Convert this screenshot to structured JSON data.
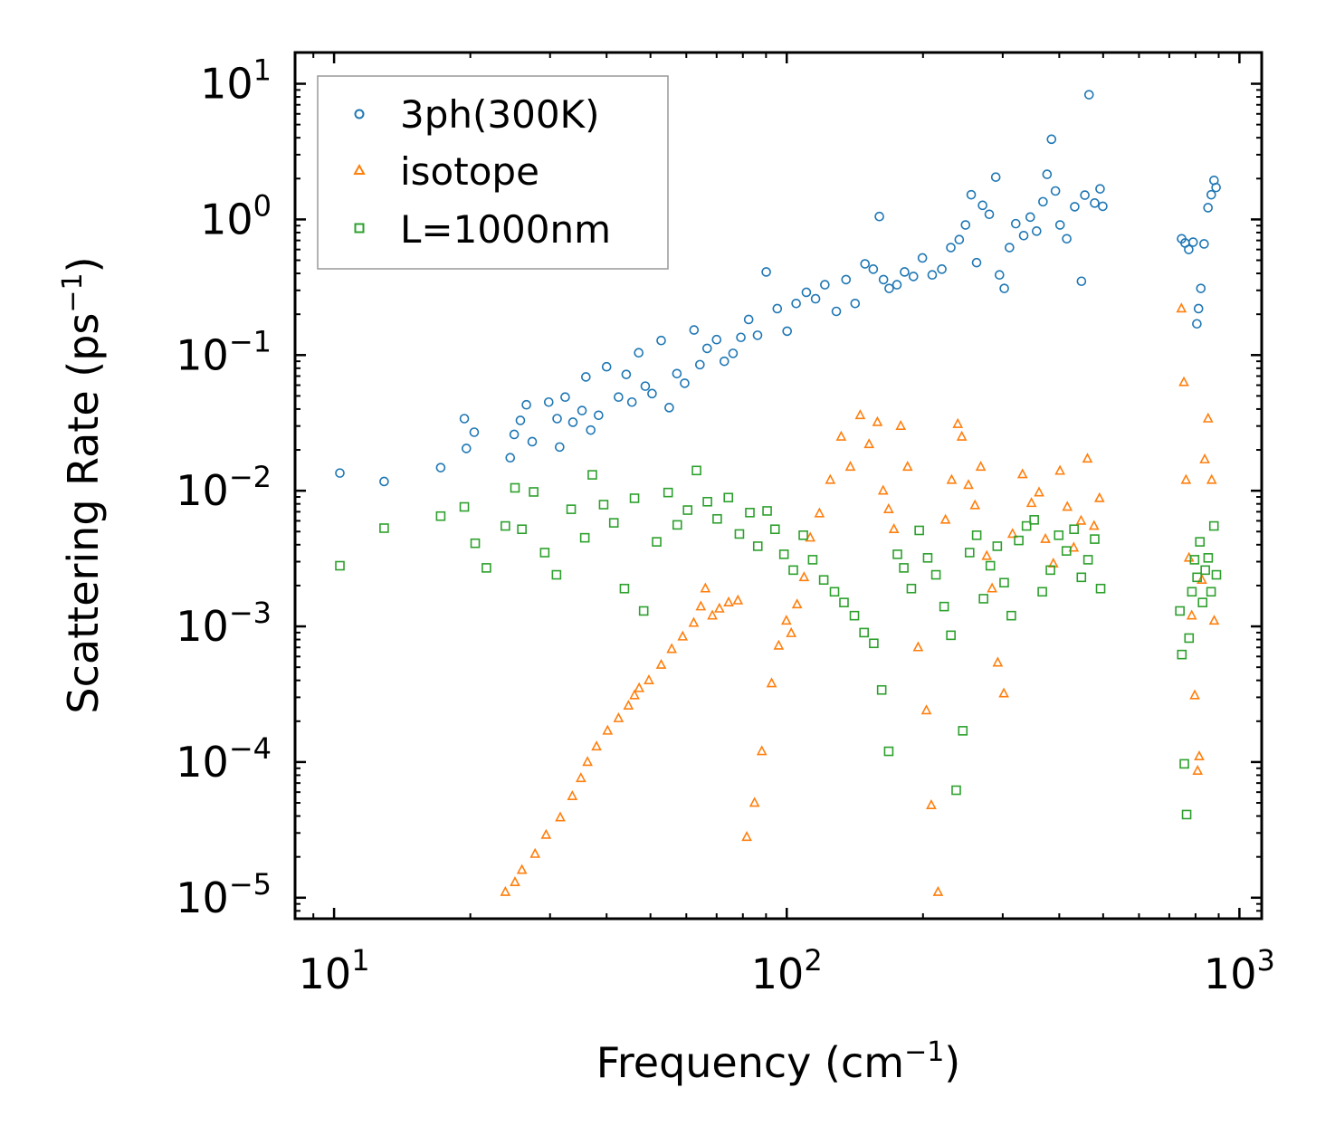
{
  "chart_data": {
    "type": "scatter",
    "title": "",
    "xlabel": "Frequency (cm",
    "xlabel_sup": "−1",
    "xlabel_tail": ")",
    "ylabel": "Scattering Rate (ps",
    "ylabel_sup": "−1",
    "ylabel_tail": ")",
    "xscale": "log",
    "yscale": "log",
    "xlim": [
      8.2,
      1120
    ],
    "ylim": [
      7e-06,
      17
    ],
    "x_ticks": [
      {
        "base": "10",
        "exp": "1",
        "value": 10
      },
      {
        "base": "10",
        "exp": "2",
        "value": 100
      },
      {
        "base": "10",
        "exp": "3",
        "value": 1000
      }
    ],
    "y_ticks": [
      {
        "base": "10",
        "exp": "1",
        "value": 10
      },
      {
        "base": "10",
        "exp": "0",
        "value": 1
      },
      {
        "base": "10",
        "exp": "−1",
        "value": 0.1
      },
      {
        "base": "10",
        "exp": "−2",
        "value": 0.01
      },
      {
        "base": "10",
        "exp": "−3",
        "value": 0.001
      },
      {
        "base": "10",
        "exp": "−4",
        "value": 0.0001
      },
      {
        "base": "10",
        "exp": "−5",
        "value": 1e-05
      }
    ],
    "legend_position": "top-left",
    "series": [
      {
        "name": "3ph(300K)",
        "marker": "circle",
        "color": "#1f77b4",
        "x": [
          10.3,
          12.9,
          17.2,
          19.4,
          19.6,
          20.4,
          24.5,
          25.0,
          25.8,
          26.6,
          27.4,
          29.8,
          31.1,
          31.5,
          32.4,
          33.7,
          35.3,
          36.0,
          36.9,
          38.4,
          40.0,
          42.5,
          44.2,
          45.5,
          47.1,
          48.7,
          50.4,
          52.8,
          55.0,
          57.2,
          59.5,
          62.4,
          64.3,
          66.7,
          70.0,
          72.8,
          76.1,
          79.2,
          82.4,
          86.2,
          90.1,
          95.3,
          100.2,
          104.9,
          110.5,
          115.8,
          121.4,
          128.7,
          135.2,
          141.6,
          148.9,
          155.3,
          160.2,
          163.6,
          168.4,
          175.2,
          182.1,
          190.5,
          199.4,
          209.6,
          220.1,
          230.4,
          240.5,
          248.3,
          255.6,
          262.7,
          270.8,
          280.2,
          289.6,
          295.1,
          302.4,
          310.5,
          320.6,
          333.8,
          345.1,
          356.4,
          368.2,
          375.9,
          384.5,
          392.3,
          401.6,
          415.5,
          432.7,
          447.8,
          455.6,
          465.4,
          478.9,
          492.3,
          499.1,
          745.4,
          758.6,
          772.9,
          790.2,
          805.5,
          812.3,
          821.9,
          835.6,
          852.4,
          866.7,
          878.9,
          888.2
        ],
        "y": [
          0.0135,
          0.0117,
          0.0148,
          0.034,
          0.0205,
          0.027,
          0.0175,
          0.026,
          0.033,
          0.043,
          0.023,
          0.045,
          0.034,
          0.021,
          0.049,
          0.032,
          0.039,
          0.069,
          0.028,
          0.036,
          0.082,
          0.049,
          0.072,
          0.045,
          0.104,
          0.059,
          0.052,
          0.128,
          0.041,
          0.073,
          0.062,
          0.153,
          0.085,
          0.112,
          0.13,
          0.09,
          0.103,
          0.135,
          0.183,
          0.14,
          0.41,
          0.22,
          0.15,
          0.24,
          0.29,
          0.26,
          0.33,
          0.21,
          0.36,
          0.24,
          0.47,
          0.43,
          1.05,
          0.36,
          0.31,
          0.33,
          0.41,
          0.38,
          0.52,
          0.39,
          0.43,
          0.62,
          0.71,
          0.91,
          1.52,
          0.48,
          1.27,
          1.09,
          2.05,
          0.39,
          0.31,
          0.62,
          0.93,
          0.76,
          1.04,
          0.82,
          1.35,
          2.15,
          3.9,
          1.62,
          0.91,
          0.72,
          1.24,
          0.35,
          1.51,
          8.3,
          1.32,
          1.68,
          1.25,
          0.72,
          0.67,
          0.6,
          0.68,
          0.17,
          0.22,
          0.31,
          0.66,
          1.22,
          1.52,
          1.94,
          1.72
        ]
      },
      {
        "name": "isotope",
        "marker": "triangle",
        "color": "#ff7f0e",
        "x": [
          23.9,
          25.1,
          26.0,
          27.8,
          29.4,
          31.6,
          33.6,
          35.1,
          36.3,
          38.0,
          40.2,
          42.5,
          44.7,
          46.1,
          47.2,
          49.6,
          52.8,
          55.7,
          58.9,
          62.3,
          64.6,
          66.1,
          68.5,
          71.0,
          74.4,
          78.0,
          81.6,
          84.9,
          88.1,
          92.6,
          96.0,
          99.8,
          102.3,
          105.4,
          109.2,
          112.7,
          118.1,
          124.8,
          131.9,
          138.2,
          145.3,
          152.0,
          158.6,
          163.3,
          167.9,
          172.5,
          178.6,
          184.9,
          195.1,
          203.5,
          208.6,
          215.9,
          224.2,
          231.4,
          238.7,
          243.6,
          252.0,
          260.5,
          268.3,
          276.6,
          284.2,
          292.5,
          301.7,
          315.4,
          331.8,
          347.2,
          360.9,
          372.8,
          388.1,
          401.4,
          416.7,
          430.5,
          446.9,
          461.6,
          477.4,
          490.8,
          744.5,
          753.9,
          762.1,
          773.8,
          784.6,
          796.8,
          808.5,
          815.1,
          826.2,
          838.3,
          852.7,
          868.4,
          879.5
        ],
        "y": [
          1.1e-05,
          1.3e-05,
          1.6e-05,
          2.1e-05,
          2.9e-05,
          3.9e-05,
          5.6e-05,
          7.6e-05,
          0.0001,
          0.00013,
          0.00017,
          0.00021,
          0.00026,
          0.00031,
          0.00035,
          0.0004,
          0.00052,
          0.00068,
          0.00084,
          0.00106,
          0.0014,
          0.0019,
          0.0012,
          0.00135,
          0.0015,
          0.00155,
          2.8e-05,
          5e-05,
          0.00012,
          0.00038,
          0.00072,
          0.0011,
          0.00089,
          0.00145,
          0.0023,
          0.0045,
          0.0068,
          0.012,
          0.025,
          0.015,
          0.036,
          0.022,
          0.032,
          0.01,
          0.0073,
          0.0052,
          0.03,
          0.015,
          0.0007,
          0.00024,
          4.8e-05,
          1.1e-05,
          0.0061,
          0.012,
          0.031,
          0.025,
          0.011,
          0.0078,
          0.015,
          0.0033,
          0.0019,
          0.00054,
          0.00032,
          0.0048,
          0.0132,
          0.0081,
          0.0097,
          0.0044,
          0.0029,
          0.014,
          0.0076,
          0.0038,
          0.006,
          0.0172,
          0.0055,
          0.0088,
          0.22,
          0.063,
          0.012,
          0.0032,
          0.0012,
          0.00031,
          8.6e-05,
          0.00011,
          0.0022,
          0.017,
          0.034,
          0.012,
          0.0011
        ]
      },
      {
        "name": "L=1000nm",
        "marker": "square",
        "color": "#2ca02c",
        "x": [
          10.3,
          12.9,
          17.2,
          19.4,
          20.5,
          21.7,
          23.9,
          25.1,
          26.0,
          27.6,
          29.2,
          31.0,
          33.4,
          35.8,
          37.2,
          39.4,
          41.5,
          43.8,
          46.1,
          48.3,
          51.6,
          54.7,
          57.3,
          60.4,
          63.2,
          66.8,
          70.2,
          74.3,
          78.6,
          82.9,
          86.3,
          90.5,
          94.2,
          98.6,
          103.4,
          108.8,
          114.1,
          120.7,
          127.5,
          133.8,
          141.1,
          148.2,
          155.7,
          162.1,
          168.0,
          175.6,
          181.4,
          188.5,
          196.2,
          204.8,
          213.6,
          222.7,
          230.5,
          236.8,
          244.9,
          253.5,
          262.8,
          272.1,
          281.7,
          291.8,
          302.2,
          313.4,
          325.5,
          338.6,
          352.1,
          366.9,
          382.4,
          398.9,
          414.8,
          431.2,
          447.6,
          463.0,
          478.9,
          493.6,
          738.8,
          746.2,
          755.7,
          764.5,
          774.1,
          785.3,
          796.0,
          806.4,
          817.9,
          829.3,
          840.5,
          853.2,
          865.8,
          878.4,
          889.6
        ],
        "y": [
          0.0028,
          0.0053,
          0.0065,
          0.0076,
          0.0041,
          0.0027,
          0.0055,
          0.0105,
          0.0052,
          0.0098,
          0.0035,
          0.0024,
          0.0073,
          0.0045,
          0.0131,
          0.0079,
          0.0058,
          0.0019,
          0.0088,
          0.0013,
          0.0042,
          0.0097,
          0.0056,
          0.0072,
          0.0141,
          0.0083,
          0.0062,
          0.0089,
          0.0048,
          0.0069,
          0.0039,
          0.0071,
          0.0052,
          0.0034,
          0.0026,
          0.0047,
          0.0031,
          0.0022,
          0.0018,
          0.0015,
          0.0012,
          0.0009,
          0.00075,
          0.00034,
          0.00012,
          0.0034,
          0.0027,
          0.0019,
          0.0051,
          0.0032,
          0.0024,
          0.0014,
          0.00086,
          6.2e-05,
          0.00017,
          0.0035,
          0.0047,
          0.0016,
          0.0028,
          0.0039,
          0.0021,
          0.0012,
          0.0043,
          0.0055,
          0.0061,
          0.0018,
          0.0026,
          0.0047,
          0.0036,
          0.0052,
          0.0023,
          0.0031,
          0.0044,
          0.0019,
          0.0013,
          0.00062,
          9.7e-05,
          4.1e-05,
          0.00082,
          0.0018,
          0.0031,
          0.0023,
          0.0042,
          0.0015,
          0.0026,
          0.0032,
          0.0018,
          0.0055,
          0.0024
        ]
      }
    ]
  }
}
